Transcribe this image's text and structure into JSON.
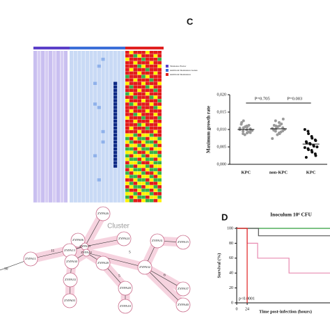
{
  "panel_labels": [
    "C",
    "D"
  ],
  "heatmap": {
    "legend": [
      "Virulence Factor",
      "Antibiotic Resistance Genes",
      "Antibiotic Resistance"
    ]
  },
  "network": {
    "cluster_label": "Cluster",
    "nodes": [
      "ZYPA26",
      "ZYPA24",
      "ZYPA06",
      "ZYPA13",
      "ZYPA19",
      "ZYPA22",
      "ZYPA11",
      "ZYPA31",
      "ZYPA15",
      "ZYPA30",
      "ZYPA28",
      "ZYPA32",
      "ZYPA33",
      "ZYPA03",
      "ZYPA20",
      "ZYPA10",
      "ZYPA37",
      "ZYPA40"
    ],
    "edge_labels": [
      "11",
      "30",
      "5",
      "6",
      "5"
    ]
  },
  "chart_data": [
    {
      "type": "strip",
      "y_label": "Maximum growth rate",
      "categories": [
        "KPC",
        "non-KPC",
        "KPC"
      ],
      "colors": [
        "#9a9a9a",
        "#9a9a9a",
        "#111111"
      ],
      "values": [
        [
          0.01,
          0.0095,
          0.0105,
          0.011,
          0.009,
          0.0102,
          0.0098,
          0.0115,
          0.012,
          0.0085,
          0.0108,
          0.0093,
          0.0112,
          0.0097,
          0.0104,
          0.0088,
          0.0125,
          0.0099,
          0.0107,
          0.0091
        ],
        [
          0.0103,
          0.0095,
          0.011,
          0.012,
          0.0088,
          0.0105,
          0.013,
          0.0098,
          0.0112,
          0.0085,
          0.0108,
          0.0093,
          0.0116,
          0.01,
          0.0074,
          0.0125,
          0.0102,
          0.009,
          0.0111,
          0.0096
        ],
        [
          0.01,
          0.0095,
          0.0088,
          0.008,
          0.0075,
          0.007,
          0.0068,
          0.0065,
          0.0062,
          0.006,
          0.0058,
          0.0055,
          0.0052,
          0.005,
          0.0048,
          0.0045,
          0.0042,
          0.004,
          0.0035,
          0.003,
          0.0025,
          0.002
        ]
      ],
      "means": [
        0.01,
        0.0102,
        0.0058
      ],
      "annotations": [
        "P=0.705",
        "P=0.003"
      ],
      "ylim": [
        0,
        0.02
      ],
      "yticks": [
        {
          "value": 0,
          "label": "0,000"
        },
        {
          "value": 0.005,
          "label": "0,005"
        },
        {
          "value": 0.01,
          "label": "0,010"
        },
        {
          "value": 0.015,
          "label": "0,015"
        },
        {
          "value": 0.02,
          "label": "0,020"
        }
      ]
    },
    {
      "type": "line",
      "title": "Inoculum 10⁶ CFU",
      "x_label": "Time post-infection (hours)",
      "y_label": "Survival (%)",
      "annotation": "p<0.0001",
      "series": [
        {
          "color": "#2e9e3a",
          "x": [
            0,
            214
          ],
          "values": [
            100,
            100
          ]
        },
        {
          "color": "#555555",
          "x": [
            0,
            50,
            50,
            214
          ],
          "values": [
            100,
            100,
            90,
            90
          ]
        },
        {
          "color": "#e88ab0",
          "x": [
            0,
            24,
            24,
            48,
            48,
            120,
            120,
            214
          ],
          "values": [
            100,
            100,
            80,
            80,
            60,
            60,
            40,
            40
          ]
        },
        {
          "color": "#e02020",
          "x": [
            0,
            24,
            24
          ],
          "values": [
            100,
            100,
            0
          ]
        }
      ],
      "xlim": [
        0,
        214
      ],
      "xticks": [
        0,
        24
      ],
      "ylim": [
        0,
        100
      ],
      "yticks": [
        0,
        20,
        40,
        60,
        80,
        100
      ]
    }
  ]
}
